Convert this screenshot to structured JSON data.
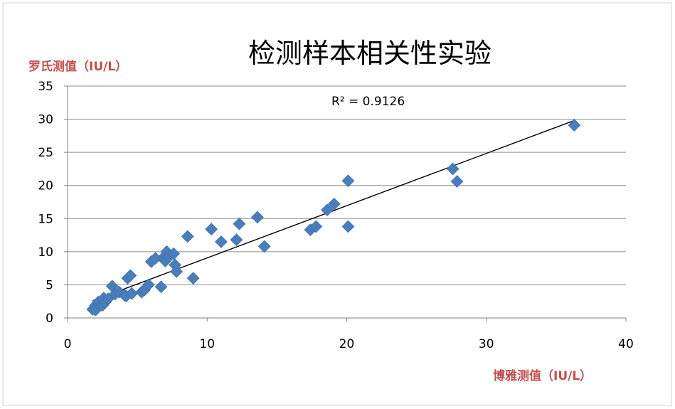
{
  "colors": {
    "marker": "#4a7ebb",
    "axis_title": "#c0504d",
    "gridline": "#8c8c8c",
    "trendline": "#000000"
  },
  "chart_data": {
    "type": "scatter",
    "title": "检测样本相关性实验",
    "xlabel": "博雅测值（IU/L）",
    "ylabel": "罗氏测值（IU/L）",
    "xlim": [
      0,
      40
    ],
    "ylim": [
      0,
      35
    ],
    "x_ticks": [
      0,
      10,
      20,
      30,
      40
    ],
    "y_ticks": [
      0,
      5,
      10,
      15,
      20,
      25,
      30,
      35
    ],
    "grid": "horizontal",
    "marker": "diamond",
    "annotation": "R² = 0.9126",
    "trendline": {
      "type": "linear",
      "x": [
        1.8,
        36.3
      ],
      "y": [
        2.6,
        29.8
      ]
    },
    "series": [
      {
        "x": [
          1.8,
          2.0,
          2.0,
          2.2,
          2.3,
          2.5,
          2.6,
          2.7,
          2.9,
          3.2,
          3.4,
          3.7,
          4.1,
          4.2,
          4.3,
          4.5,
          4.6,
          5.3,
          5.5,
          5.8,
          6.0,
          6.3,
          6.7,
          6.9,
          7.0,
          7.1,
          7.3,
          7.6,
          7.7,
          7.8,
          8.6,
          9.0,
          10.3,
          11.0,
          12.1,
          12.3,
          13.6,
          14.1,
          17.4,
          17.8,
          18.6,
          19.1,
          20.1,
          20.1,
          27.6,
          27.9,
          36.3
        ],
        "y": [
          1.3,
          1.9,
          1.2,
          2.4,
          2.0,
          1.9,
          3.0,
          2.4,
          2.9,
          4.8,
          3.6,
          3.9,
          3.4,
          3.3,
          6.0,
          6.4,
          3.7,
          3.9,
          4.2,
          5.0,
          8.5,
          9.0,
          4.7,
          9.2,
          8.6,
          10.0,
          9.3,
          9.7,
          8.0,
          7.0,
          12.3,
          6.0,
          13.4,
          11.5,
          11.8,
          14.2,
          15.2,
          10.8,
          13.3,
          13.8,
          16.3,
          17.2,
          20.7,
          13.8,
          22.5,
          20.6,
          29.1
        ]
      }
    ]
  }
}
